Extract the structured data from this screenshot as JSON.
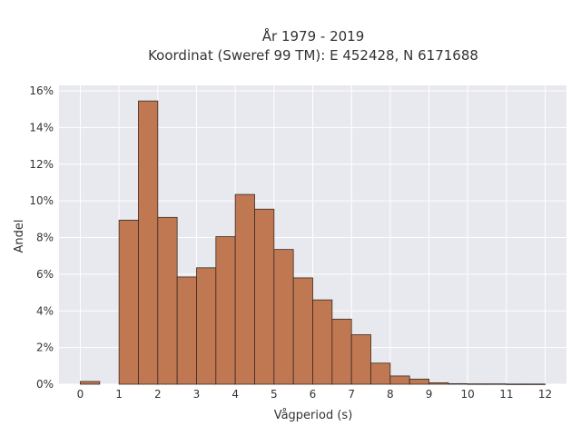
{
  "chart_data": {
    "type": "bar",
    "title_line1": "År 1979 - 2019",
    "title_line2": "Koordinat (Sweref 99 TM): E 452428, N 6171688",
    "xlabel": "Vågperiod (s)",
    "ylabel": "Andel",
    "bin_width": 0.5,
    "bins": [
      {
        "x": 0.0,
        "value": 0.15
      },
      {
        "x": 0.5,
        "value": 0.0
      },
      {
        "x": 1.0,
        "value": 8.95
      },
      {
        "x": 1.5,
        "value": 15.45
      },
      {
        "x": 2.0,
        "value": 9.1
      },
      {
        "x": 2.5,
        "value": 5.85
      },
      {
        "x": 3.0,
        "value": 6.35
      },
      {
        "x": 3.5,
        "value": 8.05
      },
      {
        "x": 4.0,
        "value": 10.35
      },
      {
        "x": 4.5,
        "value": 9.55
      },
      {
        "x": 5.0,
        "value": 7.35
      },
      {
        "x": 5.5,
        "value": 5.8
      },
      {
        "x": 6.0,
        "value": 4.6
      },
      {
        "x": 6.5,
        "value": 3.55
      },
      {
        "x": 7.0,
        "value": 2.7
      },
      {
        "x": 7.5,
        "value": 1.15
      },
      {
        "x": 8.0,
        "value": 0.45
      },
      {
        "x": 8.5,
        "value": 0.28
      },
      {
        "x": 9.0,
        "value": 0.08
      },
      {
        "x": 9.5,
        "value": 0.03
      },
      {
        "x": 10.0,
        "value": 0.02
      },
      {
        "x": 10.5,
        "value": 0.02
      },
      {
        "x": 11.0,
        "value": 0.01
      },
      {
        "x": 11.5,
        "value": 0.01
      }
    ],
    "xlim": [
      -0.55,
      12.55
    ],
    "ylim": [
      0,
      16.3
    ],
    "x_ticks": [
      0,
      1,
      2,
      3,
      4,
      5,
      6,
      7,
      8,
      9,
      10,
      11,
      12
    ],
    "y_ticks": [
      0,
      2,
      4,
      6,
      8,
      10,
      12,
      14,
      16
    ],
    "y_tick_suffix": "%",
    "grid": true,
    "colors": {
      "bar_fill": "#c07853",
      "bar_stroke": "#3a2a20",
      "plot_bg": "#e8e8ef",
      "grid": "#ffffff"
    }
  }
}
